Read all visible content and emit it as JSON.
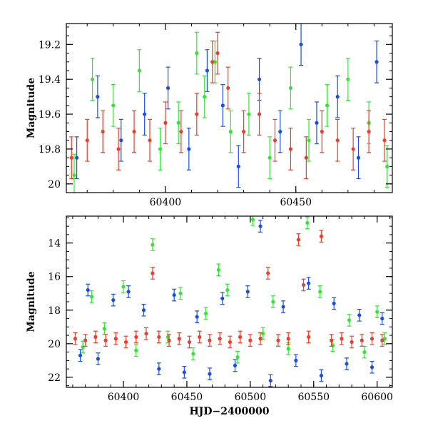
{
  "colors": {
    "green": "#33e633",
    "blue": "#1a4fe6",
    "red": "#f03c28",
    "axis": "#000000"
  },
  "chart_data": [
    {
      "type": "scatter",
      "panel": "top",
      "title": "",
      "xlabel": "",
      "ylabel": "Magnitude",
      "xlim": [
        60362,
        60487
      ],
      "ylim": [
        20.05,
        19.08
      ],
      "y_inverted": true,
      "xticks": [
        60400,
        60450
      ],
      "yticks": [
        19.2,
        19.4,
        19.6,
        19.8,
        20
      ],
      "legend": "none",
      "series": [
        {
          "color": "green",
          "marker": "circle",
          "errorbars": true,
          "x": [
            60365,
            60372,
            60380,
            60390,
            60398,
            60405,
            60412,
            60415,
            60419,
            60425,
            60432,
            60440,
            60448,
            60455,
            60462,
            60470,
            60478,
            60485
          ],
          "y": [
            19.95,
            19.4,
            19.55,
            19.35,
            19.8,
            19.65,
            19.25,
            19.5,
            19.3,
            19.7,
            19.6,
            19.85,
            19.45,
            19.75,
            19.55,
            19.4,
            19.65,
            19.9
          ]
        },
        {
          "color": "blue",
          "marker": "circle",
          "errorbars": true,
          "x": [
            60366,
            60374,
            60383,
            60392,
            60401,
            60409,
            60416,
            60422,
            60428,
            60436,
            60444,
            60452,
            60458,
            60466,
            60474,
            60481
          ],
          "y": [
            19.85,
            19.5,
            19.75,
            19.6,
            19.45,
            19.8,
            19.35,
            19.55,
            19.9,
            19.4,
            19.7,
            19.2,
            19.65,
            19.5,
            19.85,
            19.3
          ]
        },
        {
          "color": "red",
          "marker": "circle",
          "errorbars": true,
          "x": [
            60364,
            60370,
            60376,
            60382,
            60388,
            60394,
            60400,
            60406,
            60412,
            60418,
            60420,
            60424,
            60430,
            60436,
            60442,
            60448,
            60454,
            60460,
            60466,
            60472,
            60478,
            60484
          ],
          "y": [
            19.85,
            19.75,
            19.7,
            19.8,
            19.7,
            19.75,
            19.65,
            19.7,
            19.6,
            19.3,
            19.25,
            19.45,
            19.7,
            19.6,
            19.75,
            19.8,
            19.85,
            19.7,
            19.75,
            19.8,
            19.7,
            19.75
          ]
        }
      ]
    },
    {
      "type": "scatter",
      "panel": "bottom",
      "title": "",
      "xlabel": "HJD−2400000",
      "ylabel": "Magnitude",
      "xlim": [
        60355,
        60612
      ],
      "ylim": [
        22.6,
        12.4
      ],
      "y_inverted": true,
      "xticks": [
        60400,
        60450,
        60500,
        60550,
        60600
      ],
      "yticks": [
        14,
        16,
        18,
        20,
        22
      ],
      "legend": "none",
      "series": [
        {
          "color": "green",
          "marker": "circle",
          "errorbars": true,
          "x": [
            60368,
            60375,
            60385,
            60400,
            60410,
            60423,
            60435,
            60445,
            60455,
            60465,
            60475,
            60482,
            60490,
            60502,
            60510,
            60518,
            60530,
            60545,
            60555,
            60565,
            60578,
            60590,
            60600,
            60606
          ],
          "y": [
            20.2,
            17.2,
            19.1,
            16.6,
            20.4,
            14.1,
            19.6,
            17.0,
            20.6,
            18.2,
            15.6,
            16.8,
            20.8,
            12.6,
            19.4,
            17.5,
            20.3,
            12.8,
            16.9,
            20.1,
            18.6,
            20.5,
            18.1,
            19.7
          ]
        },
        {
          "color": "blue",
          "marker": "circle",
          "errorbars": true,
          "x": [
            60366,
            60372,
            60380,
            60392,
            60404,
            60416,
            60428,
            60440,
            60448,
            60458,
            60468,
            60478,
            60488,
            60498,
            60508,
            60516,
            60526,
            60536,
            60546,
            60556,
            60566,
            60576,
            60586,
            60596,
            60604
          ],
          "y": [
            20.7,
            16.8,
            20.9,
            17.4,
            16.9,
            18.0,
            21.5,
            17.1,
            21.7,
            18.4,
            21.8,
            17.3,
            21.3,
            16.9,
            13.0,
            22.2,
            17.8,
            21.0,
            16.4,
            21.9,
            17.6,
            21.2,
            18.3,
            21.4,
            18.5
          ]
        },
        {
          "color": "red",
          "marker": "circle",
          "errorbars": true,
          "x": [
            60362,
            60370,
            60378,
            60386,
            60394,
            60402,
            60410,
            60418,
            60423,
            60428,
            60436,
            60444,
            60452,
            60460,
            60468,
            60476,
            60484,
            60492,
            60500,
            60508,
            60514,
            60522,
            60530,
            60538,
            60542,
            60546,
            60556,
            60564,
            60572,
            60580,
            60588,
            60596,
            60604
          ],
          "y": [
            19.7,
            19.8,
            19.6,
            19.8,
            19.7,
            19.9,
            19.6,
            19.4,
            15.8,
            19.6,
            19.8,
            19.7,
            19.9,
            19.6,
            19.8,
            19.7,
            19.9,
            19.6,
            19.8,
            19.7,
            15.8,
            19.8,
            19.7,
            13.8,
            16.5,
            19.6,
            13.6,
            19.8,
            19.7,
            19.9,
            19.8,
            19.7,
            19.8
          ]
        }
      ]
    }
  ]
}
